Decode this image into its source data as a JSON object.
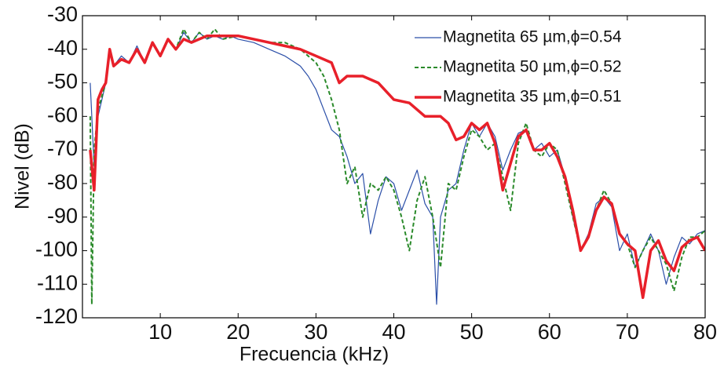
{
  "chart_data": {
    "type": "line",
    "xlabel": "Frecuencia (kHz)",
    "ylabel": "Nivel (dB)",
    "xlim": [
      0,
      80
    ],
    "ylim": [
      -120,
      -30
    ],
    "xticks": [
      10,
      20,
      30,
      40,
      50,
      60,
      70,
      80
    ],
    "yticks": [
      -120,
      -110,
      -100,
      -90,
      -80,
      -70,
      -60,
      -50,
      -40,
      -30
    ],
    "legend": "upper right",
    "series": [
      {
        "name": "Magnetita 65 µm,ϕ=0.54",
        "color": "#2b4fa8",
        "linestyle": "solid",
        "linewidth": 1.2,
        "x": [
          1,
          1.5,
          2,
          2.5,
          3,
          3.5,
          4,
          5,
          6,
          7,
          8,
          9,
          10,
          11,
          12,
          13,
          14,
          15,
          16,
          17,
          18,
          19,
          20,
          22,
          24,
          26,
          28,
          29,
          30,
          31,
          32,
          33,
          34,
          35,
          36,
          37,
          38,
          39,
          40,
          41,
          42,
          43,
          44,
          45,
          45.5,
          46,
          47,
          48,
          49,
          50,
          51,
          52,
          53,
          54,
          55,
          56,
          57,
          58,
          59,
          60,
          61,
          62,
          63,
          64,
          65,
          66,
          67,
          68,
          69,
          70,
          71,
          72,
          73,
          74,
          75,
          76,
          77,
          78,
          79,
          80
        ],
        "values": [
          -50,
          -75,
          -60,
          -55,
          -50,
          -40,
          -45,
          -42,
          -44,
          -39,
          -44,
          -38,
          -42,
          -37,
          -40,
          -35,
          -38,
          -35,
          -37,
          -36,
          -37,
          -36,
          -37,
          -38,
          -40,
          -42,
          -45,
          -48,
          -52,
          -58,
          -64,
          -66,
          -72,
          -80,
          -77,
          -95,
          -85,
          -78,
          -80,
          -88,
          -82,
          -76,
          -86,
          -90,
          -116,
          -90,
          -82,
          -80,
          -70,
          -62,
          -66,
          -62,
          -66,
          -76,
          -70,
          -65,
          -64,
          -70,
          -68,
          -72,
          -70,
          -78,
          -90,
          -100,
          -95,
          -86,
          -84,
          -87,
          -100,
          -95,
          -105,
          -100,
          -95,
          -100,
          -110,
          -102,
          -96,
          -98,
          -95,
          -94
        ]
      },
      {
        "name": "Magnetita 50 µm,ϕ=0.52",
        "color": "#2a8a2a",
        "linestyle": "dashed",
        "linewidth": 2,
        "x": [
          1,
          1.2,
          1.5,
          2,
          2.5,
          3,
          3.5,
          4,
          5,
          6,
          7,
          8,
          9,
          10,
          11,
          12,
          13,
          14,
          15,
          16,
          17,
          18,
          20,
          22,
          24,
          26,
          28,
          30,
          31,
          32,
          33,
          34,
          35,
          36,
          37,
          38,
          39,
          40,
          41,
          42,
          43,
          44,
          45,
          46,
          47,
          48,
          49,
          50,
          51,
          52,
          53,
          54,
          55,
          56,
          57,
          58,
          59,
          60,
          61,
          62,
          63,
          64,
          65,
          66,
          67,
          68,
          69,
          70,
          71,
          72,
          73,
          74,
          75,
          76,
          77,
          78,
          79,
          80
        ],
        "values": [
          -60,
          -116,
          -70,
          -58,
          -54,
          -50,
          -41,
          -45,
          -43,
          -44,
          -40,
          -44,
          -38,
          -42,
          -37,
          -40,
          -34,
          -38,
          -35,
          -37,
          -34,
          -37,
          -36,
          -37,
          -38,
          -38,
          -40,
          -44,
          -48,
          -55,
          -64,
          -80,
          -75,
          -90,
          -80,
          -82,
          -78,
          -82,
          -90,
          -100,
          -85,
          -78,
          -90,
          -105,
          -80,
          -82,
          -72,
          -64,
          -66,
          -70,
          -68,
          -78,
          -88,
          -68,
          -62,
          -70,
          -72,
          -68,
          -70,
          -80,
          -90,
          -100,
          -96,
          -88,
          -82,
          -86,
          -95,
          -98,
          -105,
          -100,
          -96,
          -100,
          -104,
          -112,
          -102,
          -96,
          -96,
          -94
        ]
      },
      {
        "name": "Magnetita 35 µm,ϕ=0.51",
        "color": "#e8202a",
        "linestyle": "solid",
        "linewidth": 3.5,
        "x": [
          1,
          1.5,
          2,
          2.5,
          3,
          3.5,
          4,
          5,
          6,
          7,
          8,
          9,
          10,
          11,
          12,
          13,
          14,
          15,
          16,
          18,
          20,
          22,
          24,
          26,
          28,
          30,
          32,
          33,
          34,
          36,
          38,
          40,
          42,
          44,
          46,
          47,
          48,
          49,
          50,
          51,
          52,
          53,
          54,
          55,
          56,
          57,
          58,
          59,
          60,
          61,
          62,
          63,
          64,
          65,
          66,
          67,
          68,
          69,
          70,
          71,
          72,
          73,
          74,
          75,
          76,
          77,
          78,
          79,
          80
        ],
        "values": [
          -70,
          -82,
          -55,
          -52,
          -50,
          -40,
          -45,
          -43,
          -44,
          -40,
          -44,
          -38,
          -42,
          -37,
          -40,
          -37,
          -38,
          -37,
          -36,
          -36,
          -36,
          -37,
          -38,
          -39,
          -40,
          -42,
          -44,
          -50,
          -48,
          -48,
          -50,
          -55,
          -56,
          -60,
          -60,
          -62,
          -67,
          -66,
          -62,
          -64,
          -62,
          -68,
          -82,
          -74,
          -66,
          -64,
          -70,
          -70,
          -68,
          -72,
          -78,
          -88,
          -100,
          -96,
          -88,
          -84,
          -86,
          -95,
          -98,
          -100,
          -114,
          -100,
          -97,
          -103,
          -106,
          -99,
          -97,
          -96,
          -100
        ]
      }
    ]
  }
}
